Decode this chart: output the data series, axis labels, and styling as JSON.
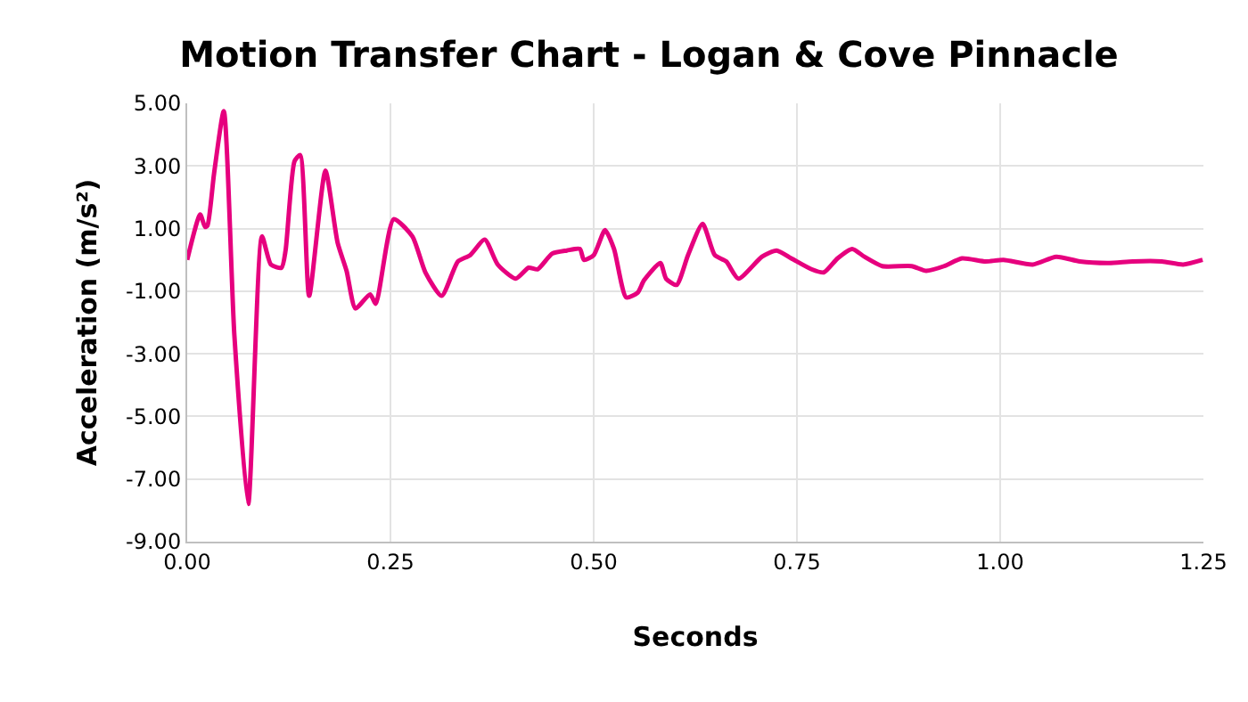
{
  "chart_data": {
    "type": "line",
    "title": "Motion Transfer Chart - Logan & Cove Pinnacle",
    "xlabel": "Seconds",
    "ylabel": "Acceleration (m/s²)",
    "xlim": [
      0,
      1.25
    ],
    "xticks": [
      {
        "value": 0,
        "label": "0.00"
      },
      {
        "value": 0.25,
        "label": "0.25"
      },
      {
        "value": 0.5,
        "label": "0.50"
      },
      {
        "value": 0.75,
        "label": "0.75"
      },
      {
        "value": 1,
        "label": "1.00"
      },
      {
        "value": 1.25,
        "label": "1.25"
      }
    ],
    "ylim": [
      -9,
      5
    ],
    "yticks": [
      {
        "value": -9,
        "label": "-9.00"
      },
      {
        "value": -7,
        "label": "-7.00"
      },
      {
        "value": -5,
        "label": "-5.00"
      },
      {
        "value": -3,
        "label": "-3.00"
      },
      {
        "value": -1,
        "label": "-1.00"
      },
      {
        "value": 1,
        "label": "1.00"
      },
      {
        "value": 3,
        "label": "3.00"
      },
      {
        "value": 5,
        "label": "5.00"
      }
    ],
    "grid": true,
    "marker": "none",
    "line_style": "solid",
    "series": [
      {
        "color": "#e6007e",
        "x": [
          0,
          0.016,
          0.022,
          0.025,
          0.033,
          0.045,
          0.058,
          0.075,
          0.092,
          0.103,
          0.116,
          0.121,
          0.132,
          0.139,
          0.15,
          0.17,
          0.185,
          0.196,
          0.207,
          0.225,
          0.232,
          0.254,
          0.277,
          0.293,
          0.313,
          0.333,
          0.348,
          0.366,
          0.382,
          0.404,
          0.42,
          0.431,
          0.449,
          0.467,
          0.483,
          0.488,
          0.5,
          0.514,
          0.525,
          0.54,
          0.554,
          0.562,
          0.582,
          0.589,
          0.602,
          0.616,
          0.634,
          0.649,
          0.663,
          0.678,
          0.707,
          0.725,
          0.743,
          0.768,
          0.783,
          0.8,
          0.818,
          0.833,
          0.855,
          0.891,
          0.909,
          0.931,
          0.953,
          0.982,
          1.004,
          1.04,
          1.069,
          1.098,
          1.134,
          1.163,
          1.199,
          1.225,
          1.249
        ],
        "values": [
          0,
          1.45,
          1.05,
          1.1,
          2.75,
          4.75,
          -2.4,
          -7.8,
          0.75,
          -0.15,
          -0.25,
          0.3,
          3.15,
          3.35,
          -1.15,
          2.85,
          0.55,
          -0.35,
          -1.55,
          -1.1,
          -1.4,
          1.3,
          0.75,
          -0.4,
          -1.15,
          -0.05,
          0.15,
          0.65,
          -0.15,
          -0.6,
          -0.25,
          -0.3,
          0.2,
          0.3,
          0.35,
          0,
          0.15,
          0.95,
          0.35,
          -1.2,
          -1.05,
          -0.65,
          -0.1,
          -0.6,
          -0.8,
          0.15,
          1.15,
          0.15,
          -0.05,
          -0.6,
          0.1,
          0.3,
          0.05,
          -0.3,
          -0.4,
          0.05,
          0.35,
          0.1,
          -0.2,
          -0.2,
          -0.35,
          -0.2,
          0.05,
          -0.05,
          0,
          -0.15,
          0.1,
          -0.05,
          -0.1,
          -0.05,
          -0.05,
          -0.15,
          0
        ]
      }
    ]
  }
}
